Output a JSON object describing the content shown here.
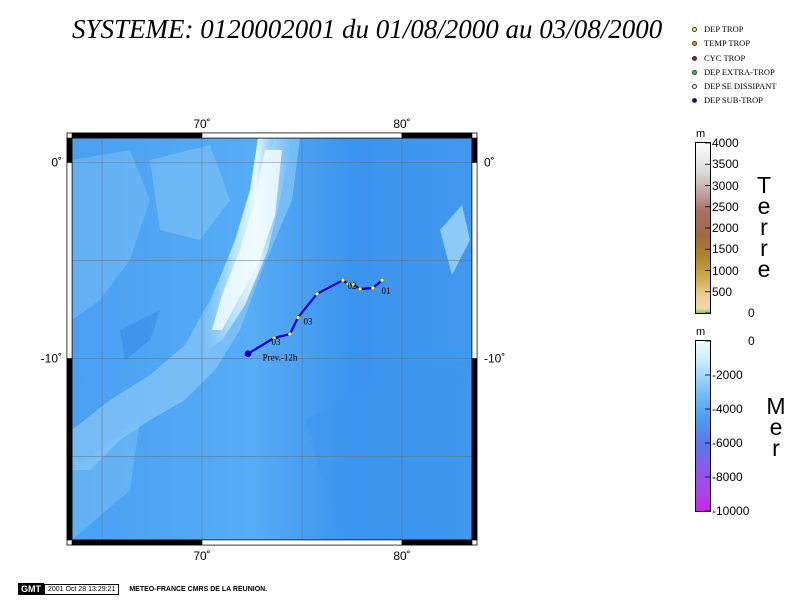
{
  "title": "SYSTEME: 0120002001 du 01/08/2000 au 03/08/2000",
  "legend": [
    {
      "label": "DEP TROP",
      "color": "#ffff33"
    },
    {
      "label": "TEMP TROP",
      "color": "#ff9900"
    },
    {
      "label": "CYC TROP",
      "color": "#dd0000"
    },
    {
      "label": "DEP EXTRA-TROP",
      "color": "#33cc33"
    },
    {
      "label": "DEP SE DISSIPANT",
      "color": "#ffffff"
    },
    {
      "label": "DEP SUB-TROP",
      "color": "#0000cc"
    }
  ],
  "map": {
    "lon_range": [
      63.5,
      83.5
    ],
    "lat_range": [
      -19.25,
      1.25
    ],
    "lon_ticks": [
      {
        "value": 70,
        "label": "70˚"
      },
      {
        "value": 80,
        "label": "80˚"
      }
    ],
    "lat_ticks": [
      {
        "value": 0,
        "label": "0˚"
      },
      {
        "value": -10,
        "label": "-10˚"
      }
    ],
    "track_color": "#0000cc",
    "track": [
      {
        "lon": 79.0,
        "lat": -6.0,
        "type": "DEP TROP"
      },
      {
        "lon": 78.55,
        "lat": -6.4,
        "type": "DEP TROP"
      },
      {
        "lon": 77.9,
        "lat": -6.45,
        "type": "DEP TROP"
      },
      {
        "lon": 77.55,
        "lat": -6.2,
        "type": "DEP TROP"
      },
      {
        "lon": 77.3,
        "lat": -6.2,
        "type": "DEP TROP"
      },
      {
        "lon": 77.05,
        "lat": -6.0,
        "type": "DEP TROP"
      },
      {
        "lon": 75.75,
        "lat": -6.7,
        "type": "DEP TROP"
      },
      {
        "lon": 74.8,
        "lat": -7.9,
        "type": "DEP TROP"
      },
      {
        "lon": 74.4,
        "lat": -8.75,
        "type": "DEP TROP"
      },
      {
        "lon": 73.6,
        "lat": -8.95,
        "type": "DEP TROP"
      },
      {
        "lon": 72.3,
        "lat": -9.75,
        "type": "DEP SUB-TROP"
      }
    ],
    "labels": [
      {
        "text": "01",
        "lon": 79.2,
        "lat": -6.7
      },
      {
        "text": "02",
        "lon": 77.5,
        "lat": -6.45
      },
      {
        "text": "03",
        "lon": 75.3,
        "lat": -8.25
      },
      {
        "text": "03",
        "lon": 73.7,
        "lat": -9.3
      },
      {
        "text": "Prev.-12h",
        "lon": 73.9,
        "lat": -10.1
      }
    ]
  },
  "scale_land": {
    "unit": "m",
    "title": [
      "T",
      "e",
      "r",
      "r",
      "e"
    ],
    "ticks": [
      "4000",
      "3500",
      "3000",
      "2500",
      "2000",
      "1500",
      "1000",
      "500",
      "0"
    ]
  },
  "scale_sea": {
    "unit": "m",
    "title": [
      "M",
      "e",
      "r"
    ],
    "ticks": [
      "0",
      "-2000",
      "-4000",
      "-6000",
      "-8000",
      "-10000"
    ]
  },
  "footer": {
    "logo": "GMT",
    "date": "2001 Oct 28 13:29:21",
    "credit": "METEO-FRANCE CMRS DE LA REUNION."
  }
}
